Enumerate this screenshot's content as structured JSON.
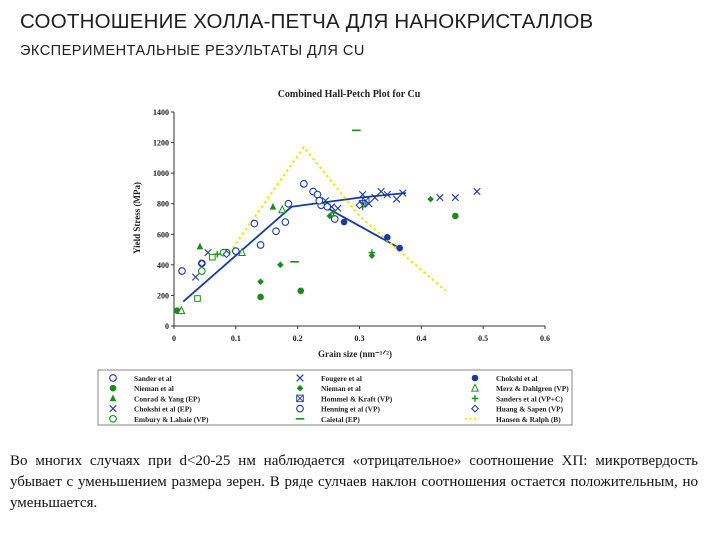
{
  "heading": {
    "title": "СООТНОШЕНИЕ ХОЛЛА-ПЕТЧА ДЛЯ НАНОКРИСТАЛЛОВ",
    "subtitle": "ЭКСПЕРИМЕНТАЛЬНЫЕ РЕЗУЛЬТАТЫ ДЛЯ CU"
  },
  "body_text": "Во многих случаях при d<20-25 нм наблюдается «отрицательное» соотношение ХП: микротвердость убывает с уменьшением размера зерен. В ряде сулчаев наклон соотношения остается положительным, но уменьшается.",
  "colors": {
    "blue": "#1a3aa0",
    "green": "#1e8a1e",
    "yellow": "#e6e62a"
  },
  "chart_data": {
    "type": "scatter",
    "title": "Combined Hall-Petch Plot for Cu",
    "xlabel": "Grain size (nm⁻¹ᐟ²)",
    "ylabel": "Yield Stress (MPa)",
    "xlim": [
      0,
      0.6
    ],
    "ylim": [
      0,
      1400
    ],
    "x_ticks": [
      "0",
      "0.1",
      "0.2",
      "0.3",
      "0.4",
      "0.5",
      "0.6"
    ],
    "y_ticks": [
      "0",
      "200",
      "400",
      "600",
      "800",
      "1000",
      "1200",
      "1400"
    ],
    "legend": {
      "placement": "bottom"
    },
    "series": [
      {
        "name": "Sander et al",
        "marker": "open-circle",
        "color": "blue",
        "points": [
          [
            0.013,
            360
          ],
          [
            0.045,
            410
          ],
          [
            0.085,
            480
          ],
          [
            0.13,
            670
          ],
          [
            0.165,
            620
          ],
          [
            0.18,
            680
          ],
          [
            0.21,
            930
          ],
          [
            0.225,
            880
          ],
          [
            0.232,
            860
          ],
          [
            0.238,
            790
          ],
          [
            0.248,
            780
          ],
          [
            0.26,
            700
          ]
        ]
      },
      {
        "name": "Nieman et al",
        "marker": "filled-circle",
        "color": "green",
        "points": [
          [
            0.005,
            100
          ],
          [
            0.14,
            190
          ],
          [
            0.205,
            230
          ],
          [
            0.455,
            720
          ]
        ]
      },
      {
        "name": "Conrad & Yang (EP)",
        "marker": "filled-triangle",
        "color": "green",
        "points": [
          [
            0.042,
            520
          ],
          [
            0.16,
            780
          ]
        ]
      },
      {
        "name": "Chokshi et al (EP)",
        "marker": "cross",
        "color": "blue",
        "points": [
          [
            0.035,
            320
          ],
          [
            0.055,
            480
          ],
          [
            0.43,
            840
          ],
          [
            0.455,
            840
          ],
          [
            0.49,
            880
          ]
        ]
      },
      {
        "name": "Embury & Lahaie (VP)",
        "marker": "open-circle",
        "color": "green",
        "points": [
          [
            0.045,
            360
          ],
          [
            0.08,
            480
          ]
        ]
      },
      {
        "name": "Fougere et al",
        "marker": "cross",
        "color": "blue",
        "points": [
          [
            0.245,
            820
          ],
          [
            0.255,
            780
          ],
          [
            0.265,
            770
          ],
          [
            0.305,
            860
          ],
          [
            0.315,
            800
          ],
          [
            0.325,
            840
          ],
          [
            0.335,
            880
          ],
          [
            0.345,
            860
          ],
          [
            0.36,
            830
          ],
          [
            0.37,
            870
          ]
        ]
      },
      {
        "name": "Nieman et al",
        "marker": "filled-diamond",
        "color": "green",
        "points": [
          [
            0.14,
            290
          ],
          [
            0.172,
            400
          ],
          [
            0.252,
            720
          ],
          [
            0.32,
            460
          ],
          [
            0.415,
            830
          ]
        ]
      },
      {
        "name": "Hommel & Kraft (VP)",
        "marker": "box-x",
        "color": "blue",
        "points": [
          [
            0.305,
            800
          ],
          [
            0.31,
            820
          ]
        ]
      },
      {
        "name": "Henning et al (VP)",
        "marker": "open-circle",
        "color": "blue",
        "points": [
          [
            0.1,
            490
          ],
          [
            0.14,
            530
          ],
          [
            0.185,
            800
          ],
          [
            0.235,
            820
          ]
        ]
      },
      {
        "name": "Caietal (EP)",
        "marker": "dash",
        "color": "green",
        "points": [
          [
            0.195,
            420
          ],
          [
            0.295,
            1280
          ]
        ]
      },
      {
        "name": "Chokshi et al",
        "marker": "filled-circle",
        "color": "blue",
        "points": [
          [
            0.275,
            680
          ],
          [
            0.345,
            580
          ],
          [
            0.365,
            510
          ]
        ]
      },
      {
        "name": "Merz & Dahlgren (VP)",
        "marker": "open-triangle",
        "color": "green",
        "points": [
          [
            0.012,
            100
          ],
          [
            0.11,
            480
          ],
          [
            0.175,
            760
          ]
        ]
      },
      {
        "name": "Sanders et al (VP+C)",
        "marker": "plus",
        "color": "green",
        "points": [
          [
            0.07,
            470
          ],
          [
            0.258,
            740
          ],
          [
            0.305,
            780
          ],
          [
            0.32,
            480
          ]
        ]
      },
      {
        "name": "Huang & Sapen (VP)",
        "marker": "open-diamond",
        "color": "blue",
        "points": [
          [
            0.045,
            410
          ],
          [
            0.085,
            470
          ],
          [
            0.3,
            790
          ]
        ]
      },
      {
        "name": "Hansen & Ralph (B)",
        "marker": "square",
        "color": "green",
        "points": [
          [
            0.038,
            180
          ],
          [
            0.062,
            450
          ]
        ]
      }
    ],
    "fit_lines": [
      {
        "name": "hp-fit-left",
        "color": "blue",
        "points": [
          [
            0.015,
            160
          ],
          [
            0.19,
            780
          ]
        ]
      },
      {
        "name": "hp-fit-right",
        "color": "blue",
        "points": [
          [
            0.19,
            780
          ],
          [
            0.3,
            840
          ],
          [
            0.375,
            870
          ]
        ]
      },
      {
        "name": "hp-fit-downturn",
        "color": "blue",
        "points": [
          [
            0.235,
            800
          ],
          [
            0.36,
            520
          ]
        ]
      },
      {
        "name": "yellow-trend",
        "color": "yellow",
        "dashed": true,
        "points": [
          [
            0.09,
            480
          ],
          [
            0.21,
            1170
          ],
          [
            0.3,
            720
          ],
          [
            0.37,
            470
          ],
          [
            0.44,
            230
          ]
        ]
      }
    ]
  }
}
